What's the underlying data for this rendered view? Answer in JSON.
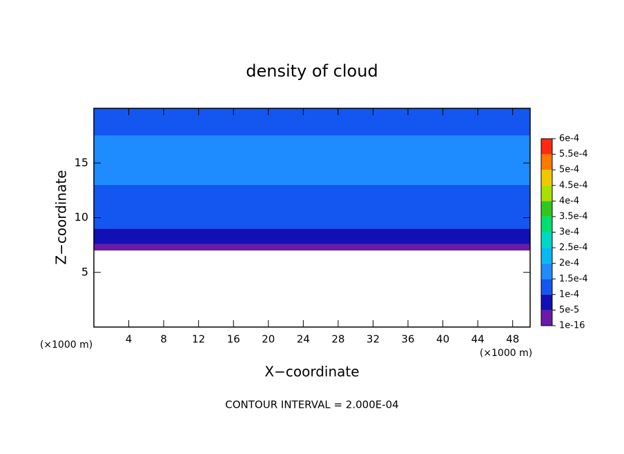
{
  "chart_data": {
    "type": "contour",
    "title": "density of cloud",
    "xlabel": "X−coordinate",
    "ylabel": "Z−coordinate",
    "x_unit": "(×1000 m)",
    "y_unit": "(×1000 m)",
    "footer": "CONTOUR INTERVAL = 2.000E-04",
    "xlim": [
      0,
      50
    ],
    "ylim": [
      0,
      20
    ],
    "xticks": [
      4,
      8,
      12,
      16,
      20,
      24,
      28,
      32,
      36,
      40,
      44,
      48
    ],
    "yticks": [
      5,
      10,
      15
    ],
    "profile": {
      "z": [
        7,
        7.6,
        9,
        13,
        17.5,
        20
      ],
      "values": [
        2e-05,
        7e-05,
        0.00012,
        0.00016,
        0.00012
      ]
    },
    "colorbar": {
      "ticks": [
        {
          "value": 1e-16,
          "label": "1e-16"
        },
        {
          "value": 5e-05,
          "label": "5e-5"
        },
        {
          "value": 0.0001,
          "label": "1e-4"
        },
        {
          "value": 0.00015,
          "label": "1.5e-4"
        },
        {
          "value": 0.0002,
          "label": "2e-4"
        },
        {
          "value": 0.00025,
          "label": "2.5e-4"
        },
        {
          "value": 0.0003,
          "label": "3e-4"
        },
        {
          "value": 0.00035,
          "label": "3.5e-4"
        },
        {
          "value": 0.0004,
          "label": "4e-4"
        },
        {
          "value": 0.00045,
          "label": "4.5e-4"
        },
        {
          "value": 0.0005,
          "label": "5e-4"
        },
        {
          "value": 0.00055,
          "label": "5.5e-4"
        },
        {
          "value": 0.0006,
          "label": "6e-4"
        }
      ],
      "colors": [
        "#6a1aa8",
        "#1010b4",
        "#1456f0",
        "#1e8cff",
        "#0ab8f0",
        "#00d8c8",
        "#00e070",
        "#30c820",
        "#a8e000",
        "#f0c800",
        "#ff7800",
        "#ff2a10"
      ]
    }
  }
}
